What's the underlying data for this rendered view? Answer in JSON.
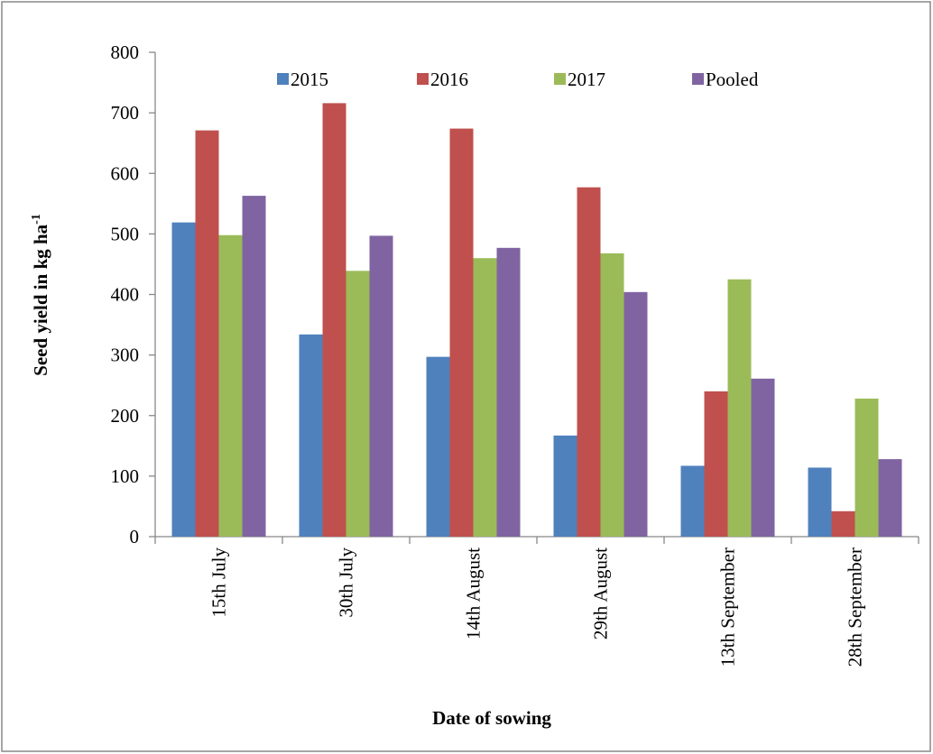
{
  "chart_data": {
    "type": "bar",
    "y_label": "Seed yield in kg ha",
    "y_label_superscript": "-1",
    "x_label": "Date of sowing",
    "categories": [
      "15th July",
      "30th July",
      "14th August",
      "29th August",
      "13th September",
      "28th September"
    ],
    "series": [
      {
        "name": "2015",
        "color": "#4f81bd",
        "values": [
          519,
          334,
          297,
          167,
          117,
          114
        ]
      },
      {
        "name": "2016",
        "color": "#c0504d",
        "values": [
          671,
          716,
          674,
          577,
          240,
          42
        ]
      },
      {
        "name": "2017",
        "color": "#9bbb59",
        "values": [
          498,
          439,
          460,
          468,
          425,
          228
        ]
      },
      {
        "name": "Pooled",
        "color": "#8064a2",
        "values": [
          563,
          497,
          477,
          404,
          261,
          128
        ]
      }
    ],
    "ylim": [
      0,
      800
    ],
    "yticks": [
      0,
      100,
      200,
      300,
      400,
      500,
      600,
      700,
      800
    ],
    "grid": false,
    "legend_position": "top"
  }
}
